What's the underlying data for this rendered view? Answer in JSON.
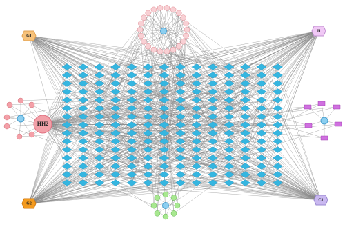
{
  "nodes": [
    {
      "label": "G1"
    },
    {
      "label": "G2"
    },
    {
      "label": "HH2"
    },
    {
      "label": "J1"
    },
    {
      "label": "C1"
    }
  ]
}
